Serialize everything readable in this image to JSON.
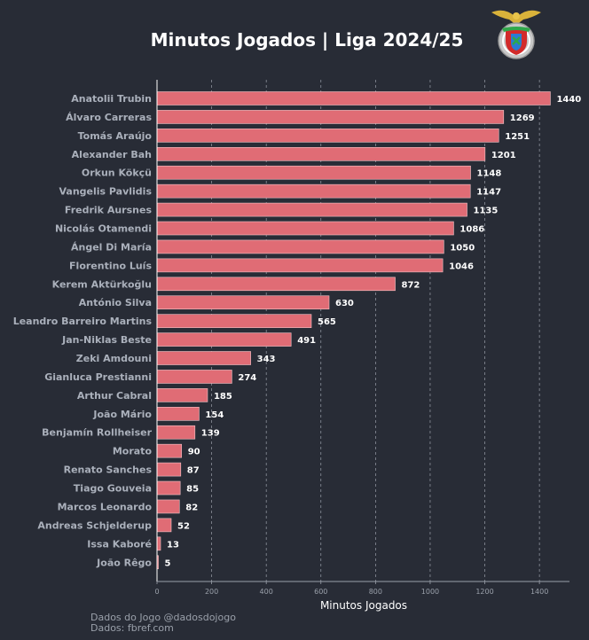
{
  "header": {
    "title": "Minutos Jogados | Liga 2024/25"
  },
  "footer": {
    "line1": "Dados do Jogo @dadosdojogo",
    "line2": "Dados: fbref.com"
  },
  "colors": {
    "background": "#282c36",
    "bar": "#e06c75",
    "bar_edge": "#f3c4c8",
    "text": "#ffffff",
    "label": "#aab0bb",
    "grid": "#9aa0aa"
  },
  "chart_data": {
    "type": "bar",
    "orientation": "horizontal",
    "title": "Minutos Jogados | Liga 2024/25",
    "xlabel": "Minutos Jogados",
    "ylabel": "",
    "xlim": [
      0,
      1510
    ],
    "xticks": [
      0,
      200,
      400,
      600,
      800,
      1000,
      1200,
      1400
    ],
    "grid": "vertical-dashed",
    "categories": [
      "Anatolii Trubin",
      "Álvaro Carreras",
      "Tomás Araújo",
      "Alexander Bah",
      "Orkun Kökçü",
      "Vangelis Pavlidis",
      "Fredrik Aursnes",
      "Nicolás Otamendi",
      "Ángel Di María",
      "Florentino Luís",
      "Kerem Aktürkoğlu",
      "António Silva",
      "Leandro Barreiro Martins",
      "Jan-Niklas Beste",
      "Zeki Amdouni",
      "Gianluca Prestianni",
      "Arthur Cabral",
      "João Mário",
      "Benjamín Rollheiser",
      "Morato",
      "Renato Sanches",
      "Tiago Gouveia",
      "Marcos Leonardo",
      "Andreas Schjelderup",
      "Issa Kaboré",
      "João Rêgo"
    ],
    "values": [
      1440,
      1269,
      1251,
      1201,
      1148,
      1147,
      1135,
      1086,
      1050,
      1046,
      872,
      630,
      565,
      491,
      343,
      274,
      185,
      154,
      139,
      90,
      87,
      85,
      82,
      52,
      13,
      5
    ]
  }
}
